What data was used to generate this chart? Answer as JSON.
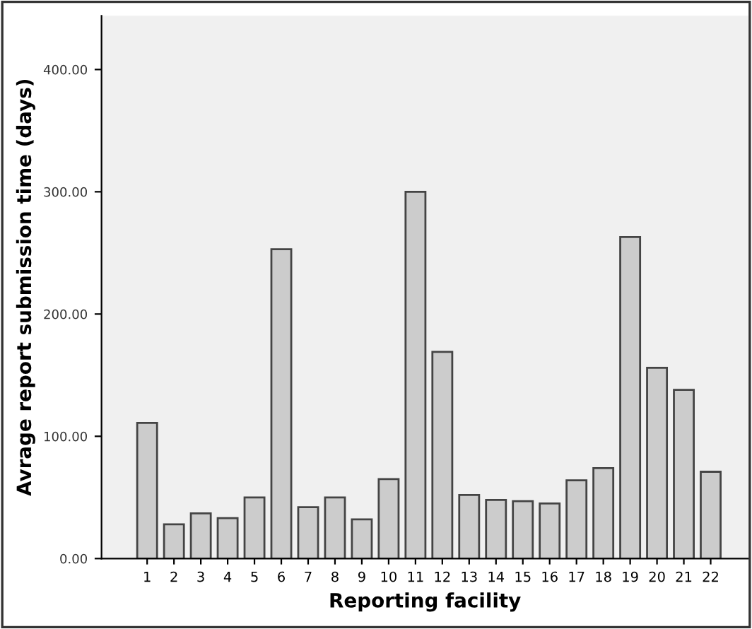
{
  "chart_data": {
    "type": "bar",
    "xlabel": "Reporting facility",
    "ylabel": "Avrage report submission time (days)",
    "categories": [
      "1",
      "2",
      "3",
      "4",
      "5",
      "6",
      "7",
      "8",
      "9",
      "10",
      "11",
      "12",
      "13",
      "14",
      "15",
      "16",
      "17",
      "18",
      "19",
      "20",
      "21",
      "22"
    ],
    "values": [
      111,
      28,
      37,
      33,
      50,
      253,
      42,
      50,
      32,
      65,
      300,
      169,
      52,
      48,
      47,
      45,
      64,
      74,
      263,
      156,
      138,
      71
    ],
    "color": "#cccccc",
    "ylim": [
      0,
      444
    ],
    "yticks": [
      {
        "value": 0,
        "label": "0.00"
      },
      {
        "value": 100,
        "label": "100.00"
      },
      {
        "value": 200,
        "label": "200.00"
      },
      {
        "value": 300,
        "label": "300.00"
      },
      {
        "value": 400,
        "label": "400.00"
      }
    ],
    "grid": false
  }
}
